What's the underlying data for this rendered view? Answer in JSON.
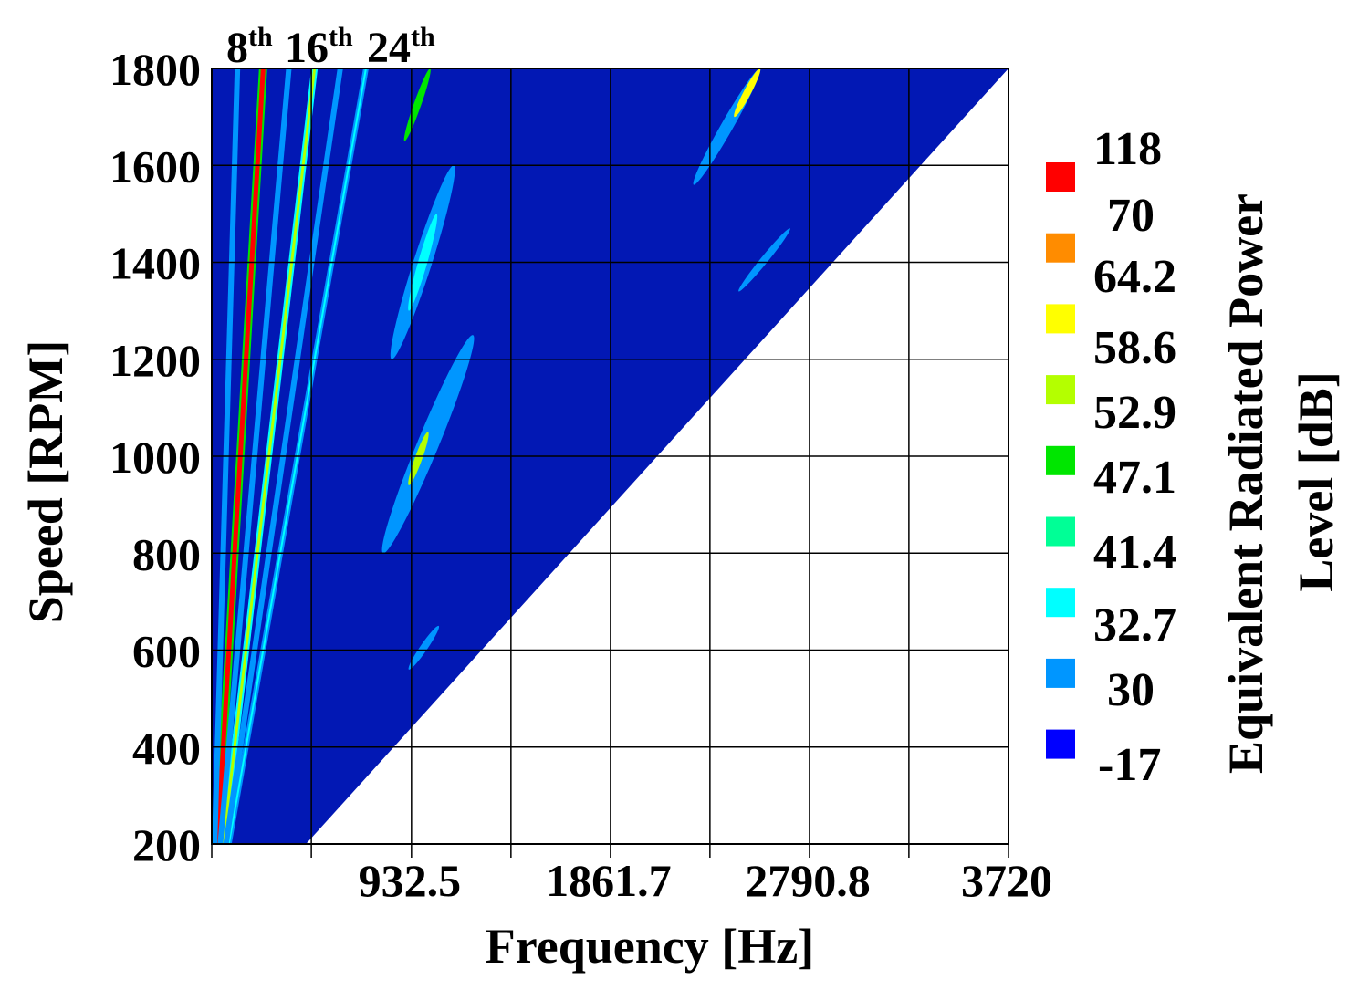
{
  "chart_data": {
    "type": "heatmap",
    "subtype": "campbell-diagram",
    "xlabel": "Frequency [Hz]",
    "ylabel": "Speed [RPM]",
    "colorbar_label_line1": "Equivalent Radiated Power",
    "colorbar_label_line2": "Level [dB]",
    "xlim": [
      0,
      3720
    ],
    "ylim": [
      200,
      1800
    ],
    "x_tick_labels": [
      "932.5",
      "1861.7",
      "2790.8",
      "3720"
    ],
    "x_tick_values": [
      932.5,
      1861.7,
      2790.8,
      3720
    ],
    "x_grid_values": [
      465,
      932.5,
      1397,
      1861.7,
      2326,
      2790.8,
      3255,
      3720
    ],
    "y_ticks": [
      200,
      400,
      600,
      800,
      1000,
      1200,
      1400,
      1600,
      1800
    ],
    "grid": true,
    "legend_position": "right",
    "background_level": -17,
    "background_color": "#0218b4",
    "order_labels": [
      {
        "base": "8",
        "sup": "th",
        "order": 8
      },
      {
        "base": "16",
        "sup": "th",
        "order": 16
      },
      {
        "base": "24",
        "sup": "th",
        "order": 24
      }
    ],
    "colorbar_levels": [
      "118",
      "70",
      "64.2",
      "58.6",
      "52.9",
      "47.1",
      "41.4",
      "32.7",
      "30",
      "-17"
    ],
    "colorbar_swatches": [
      {
        "level_range": "70-118",
        "color": "#ff0000"
      },
      {
        "level_range": "64.2-70",
        "color": "#ff8c00"
      },
      {
        "level_range": "58.6-64.2",
        "color": "#ffff00"
      },
      {
        "level_range": "52.9-58.6",
        "color": "#b4ff00"
      },
      {
        "level_range": "47.1-52.9",
        "color": "#00e600"
      },
      {
        "level_range": "41.4-47.1",
        "color": "#00ff96"
      },
      {
        "level_range": "32.7-41.4",
        "color": "#00ffff"
      },
      {
        "level_range": "30-32.7",
        "color": "#0096ff"
      },
      {
        "level_range": "-17-30",
        "color": "#0000ff"
      }
    ],
    "order_lines": [
      {
        "order": 8,
        "color": "#ff0000",
        "edge_color": "#00e600"
      },
      {
        "order": 16,
        "color": "#b4ff00",
        "edge_color": "#00ffff"
      },
      {
        "order": 24,
        "color": "#00ffff",
        "edge_color": "#0096ff"
      },
      {
        "order": 4,
        "color": "#0096ff",
        "edge_color": "#0096ff"
      },
      {
        "order": 12,
        "color": "#0096ff",
        "edge_color": "#0096ff"
      },
      {
        "order": 20,
        "color": "#0096ff",
        "edge_color": "#0096ff"
      }
    ],
    "hot_spots": [
      {
        "rpm": [
          1650,
          1800
        ],
        "freq": [
          900,
          1020
        ],
        "color": "#00e600"
      },
      {
        "rpm": [
          1200,
          1600
        ],
        "freq": [
          840,
          1130
        ],
        "color": "#0096ff"
      },
      {
        "rpm": [
          1300,
          1500
        ],
        "freq": [
          920,
          1050
        ],
        "color": "#00ffff"
      },
      {
        "rpm": [
          800,
          1250
        ],
        "freq": [
          800,
          1220
        ],
        "color": "#0096ff"
      },
      {
        "rpm": [
          940,
          1050
        ],
        "freq": [
          920,
          1010
        ],
        "color": "#b4ff00"
      },
      {
        "rpm": [
          560,
          650
        ],
        "freq": [
          920,
          1060
        ],
        "color": "#0096ff"
      },
      {
        "rpm": [
          1560,
          1800
        ],
        "freq": [
          2250,
          2560
        ],
        "color": "#0096ff"
      },
      {
        "rpm": [
          1700,
          1800
        ],
        "freq": [
          2440,
          2560
        ],
        "color": "#ffff00"
      },
      {
        "rpm": [
          1340,
          1470
        ],
        "freq": [
          2460,
          2700
        ],
        "color": "#0096ff"
      }
    ]
  }
}
